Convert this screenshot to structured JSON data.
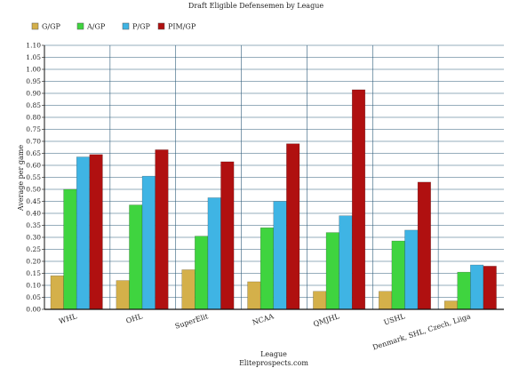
{
  "chart_data": {
    "type": "bar",
    "title": "Draft Eligible Defensemen by League",
    "xlabel": "League",
    "xlabel_sub": "Eliteprospects.com",
    "ylabel": "Average per game",
    "ylim": [
      0,
      1.1
    ],
    "ytick_step": 0.05,
    "grid": true,
    "legend_position": "top-left",
    "categories": [
      "WHL",
      "OHL",
      "SuperElit",
      "NCAA",
      "QMJHL",
      "USHL",
      "Denmark, SHL, Czech, Liiga"
    ],
    "series": [
      {
        "name": "G/GP",
        "color": "#d4b04a",
        "values": [
          0.14,
          0.12,
          0.165,
          0.115,
          0.075,
          0.075,
          0.035
        ]
      },
      {
        "name": "A/GP",
        "color": "#3fd43f",
        "values": [
          0.5,
          0.435,
          0.305,
          0.34,
          0.32,
          0.285,
          0.155
        ]
      },
      {
        "name": "P/GP",
        "color": "#3fb4e4",
        "values": [
          0.635,
          0.555,
          0.465,
          0.45,
          0.39,
          0.33,
          0.185
        ]
      },
      {
        "name": "PIM/GP",
        "color": "#b01010",
        "values": [
          0.645,
          0.665,
          0.615,
          0.69,
          0.915,
          0.53,
          0.18
        ]
      }
    ]
  }
}
